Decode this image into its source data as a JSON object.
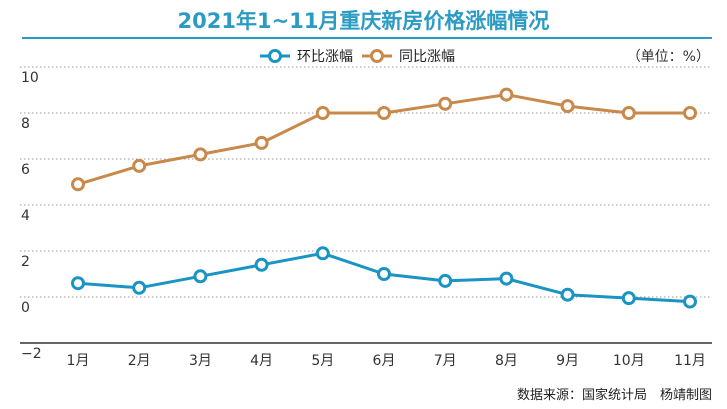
{
  "chart_data": {
    "type": "line",
    "title": "2021年1~11月重庆新房价格涨幅情况",
    "unit": "（单位：%）",
    "source": "数据来源：国家统计局　杨靖制图",
    "categories": [
      "1月",
      "2月",
      "3月",
      "4月",
      "5月",
      "6月",
      "7月",
      "8月",
      "9月",
      "10月",
      "11月"
    ],
    "series": [
      {
        "name": "环比涨幅",
        "color": "#1a94c4",
        "values": [
          0.6,
          0.4,
          0.9,
          1.4,
          1.9,
          1.0,
          0.7,
          0.8,
          0.1,
          -0.05,
          -0.2
        ]
      },
      {
        "name": "同比涨幅",
        "color": "#c8894a",
        "values": [
          4.9,
          5.7,
          6.2,
          6.7,
          8.0,
          8.0,
          8.4,
          8.8,
          8.3,
          8.0,
          8.0
        ]
      }
    ],
    "ylim": [
      -2,
      10
    ],
    "yticks": [
      "−2",
      "0",
      "2",
      "4",
      "6",
      "8",
      "10"
    ],
    "ytick_values": [
      -2,
      0,
      2,
      4,
      6,
      8,
      10
    ],
    "grid": true,
    "legend_position": "top-center",
    "grid_color": "#9a9a9a"
  }
}
